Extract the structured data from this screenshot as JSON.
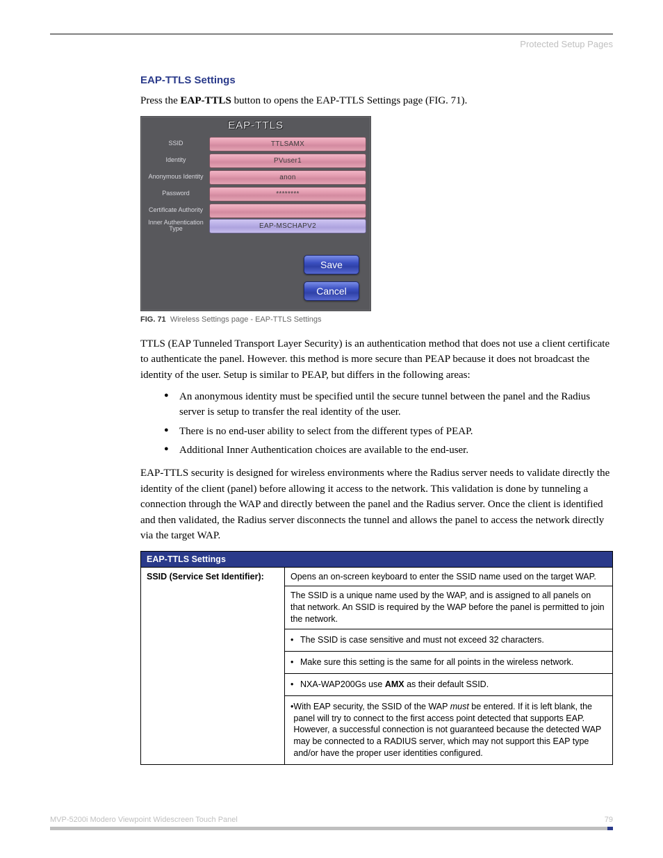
{
  "header": {
    "section": "Protected Setup Pages"
  },
  "section_heading": "EAP-TTLS Settings",
  "intro": {
    "pre": "Press the ",
    "bold": "EAP-TTLS",
    "post": " button to opens the EAP-TTLS Settings page (FIG. 71)."
  },
  "ui": {
    "title": "EAP-TTLS",
    "rows": [
      {
        "label": "SSID",
        "value": "TTLSAMX",
        "style": "pink"
      },
      {
        "label": "Identity",
        "value": "PVuser1",
        "style": "pink"
      },
      {
        "label": "Anonymous Identity",
        "value": "anon",
        "style": "pink"
      },
      {
        "label": "Password",
        "value": "********",
        "style": "pink"
      },
      {
        "label": "Certificate Authority",
        "value": "",
        "style": "pink"
      },
      {
        "label": "Inner Authentication Type",
        "value": "EAP-MSCHAPV2",
        "style": "purple"
      }
    ],
    "save": "Save",
    "cancel": "Cancel"
  },
  "fig": {
    "num": "FIG. 71",
    "text": "Wireless Settings page - EAP-TTLS Settings"
  },
  "para1": "TTLS (EAP Tunneled Transport Layer Security) is an authentication method that does not use a client certificate to authenticate the panel. However. this method is more secure than PEAP because it does not broadcast the identity of the user. Setup is similar to PEAP, but differs in the following areas:",
  "bullets": [
    "An anonymous identity must be specified until the secure tunnel between the panel and the Radius server is setup to transfer the real identity of the user.",
    "There is no end-user ability to select from the different types of PEAP.",
    "Additional Inner Authentication choices are available to the end-user."
  ],
  "para2": "EAP-TTLS security is designed for wireless environments where the Radius server needs to validate directly the identity of the client (panel) before allowing it access to the network. This validation is done by tunneling a connection through the WAP and directly between the panel and the Radius server. Once the client is identified and then validated, the Radius server disconnects the tunnel and allows the panel to access the network directly via the target WAP.",
  "table": {
    "header": "EAP-TTLS Settings",
    "row_label": "SSID (Service Set Identifier):",
    "r1": "Opens an on-screen keyboard to enter the SSID name used on the target WAP.",
    "r2": "The SSID is a unique name used by the WAP, and is assigned to all panels on that network. An SSID is required by the WAP before the panel is permitted to join the network.",
    "b1": "The SSID is case sensitive and must not exceed 32 characters.",
    "b2": "Make sure this setting is the same for all points in the wireless network.",
    "b3_pre": "NXA-WAP200Gs use ",
    "b3_bold": "AMX",
    "b3_post": " as their default SSID.",
    "b4_pre": "With EAP security, the SSID of the WAP ",
    "b4_italic": "must",
    "b4_post": " be entered. If it is left blank, the panel will try to connect to the first access point detected that supports EAP. However, a successful connection is not guaranteed because the detected WAP may be connected to a RADIUS server, which may not support this EAP type and/or have the proper user identities configured."
  },
  "footer": {
    "product": "MVP-5200i Modero Viewpoint Widescreen Touch Panel",
    "page": "79"
  }
}
